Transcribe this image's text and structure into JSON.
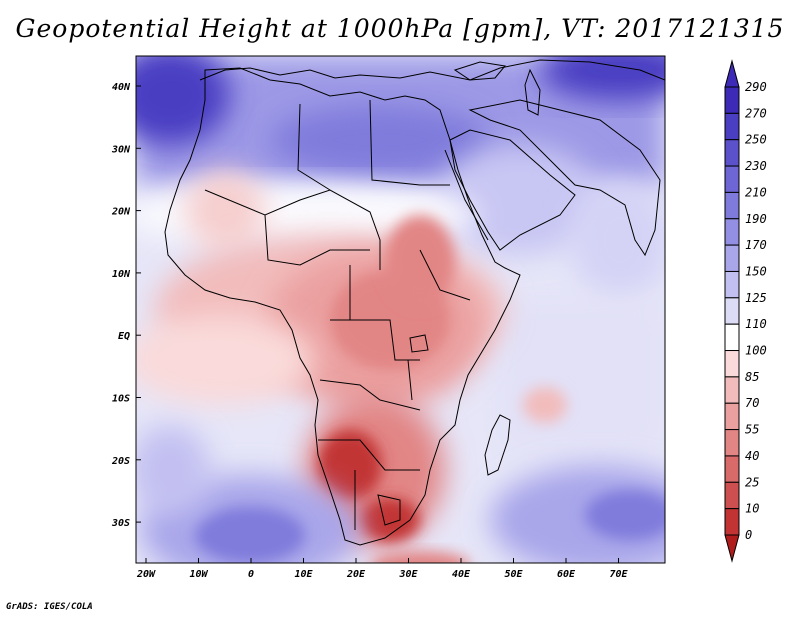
{
  "title": "Geopotential Height at 1000hPa [gpm], VT: 2017121315",
  "credit": "GrADS: IGES/COLA",
  "map": {
    "region": "Africa, Middle East and western Indian Ocean",
    "lon_labels": [
      "20W",
      "10W",
      "0",
      "10E",
      "20E",
      "30E",
      "40E",
      "50E",
      "60E",
      "70E"
    ],
    "lat_labels": [
      "40N",
      "30N",
      "20N",
      "10N",
      "EQ",
      "10S",
      "20S",
      "30S"
    ]
  },
  "colorbar": {
    "levels": [
      "290",
      "270",
      "250",
      "230",
      "210",
      "190",
      "170",
      "150",
      "125",
      "110",
      "100",
      "85",
      "70",
      "55",
      "40",
      "25",
      "10",
      "0"
    ],
    "colors": [
      "#3d2bb8",
      "#4a3ec2",
      "#5b52cb",
      "#6d66d4",
      "#7f7bdc",
      "#938fe3",
      "#a9a6ea",
      "#c2c0f1",
      "#dcdcf7",
      "#ffffff",
      "#fadada",
      "#f2bcbc",
      "#eba0a0",
      "#e28585",
      "#d86a6a",
      "#ce4f4f",
      "#c23434",
      "#b01c1c"
    ]
  }
}
